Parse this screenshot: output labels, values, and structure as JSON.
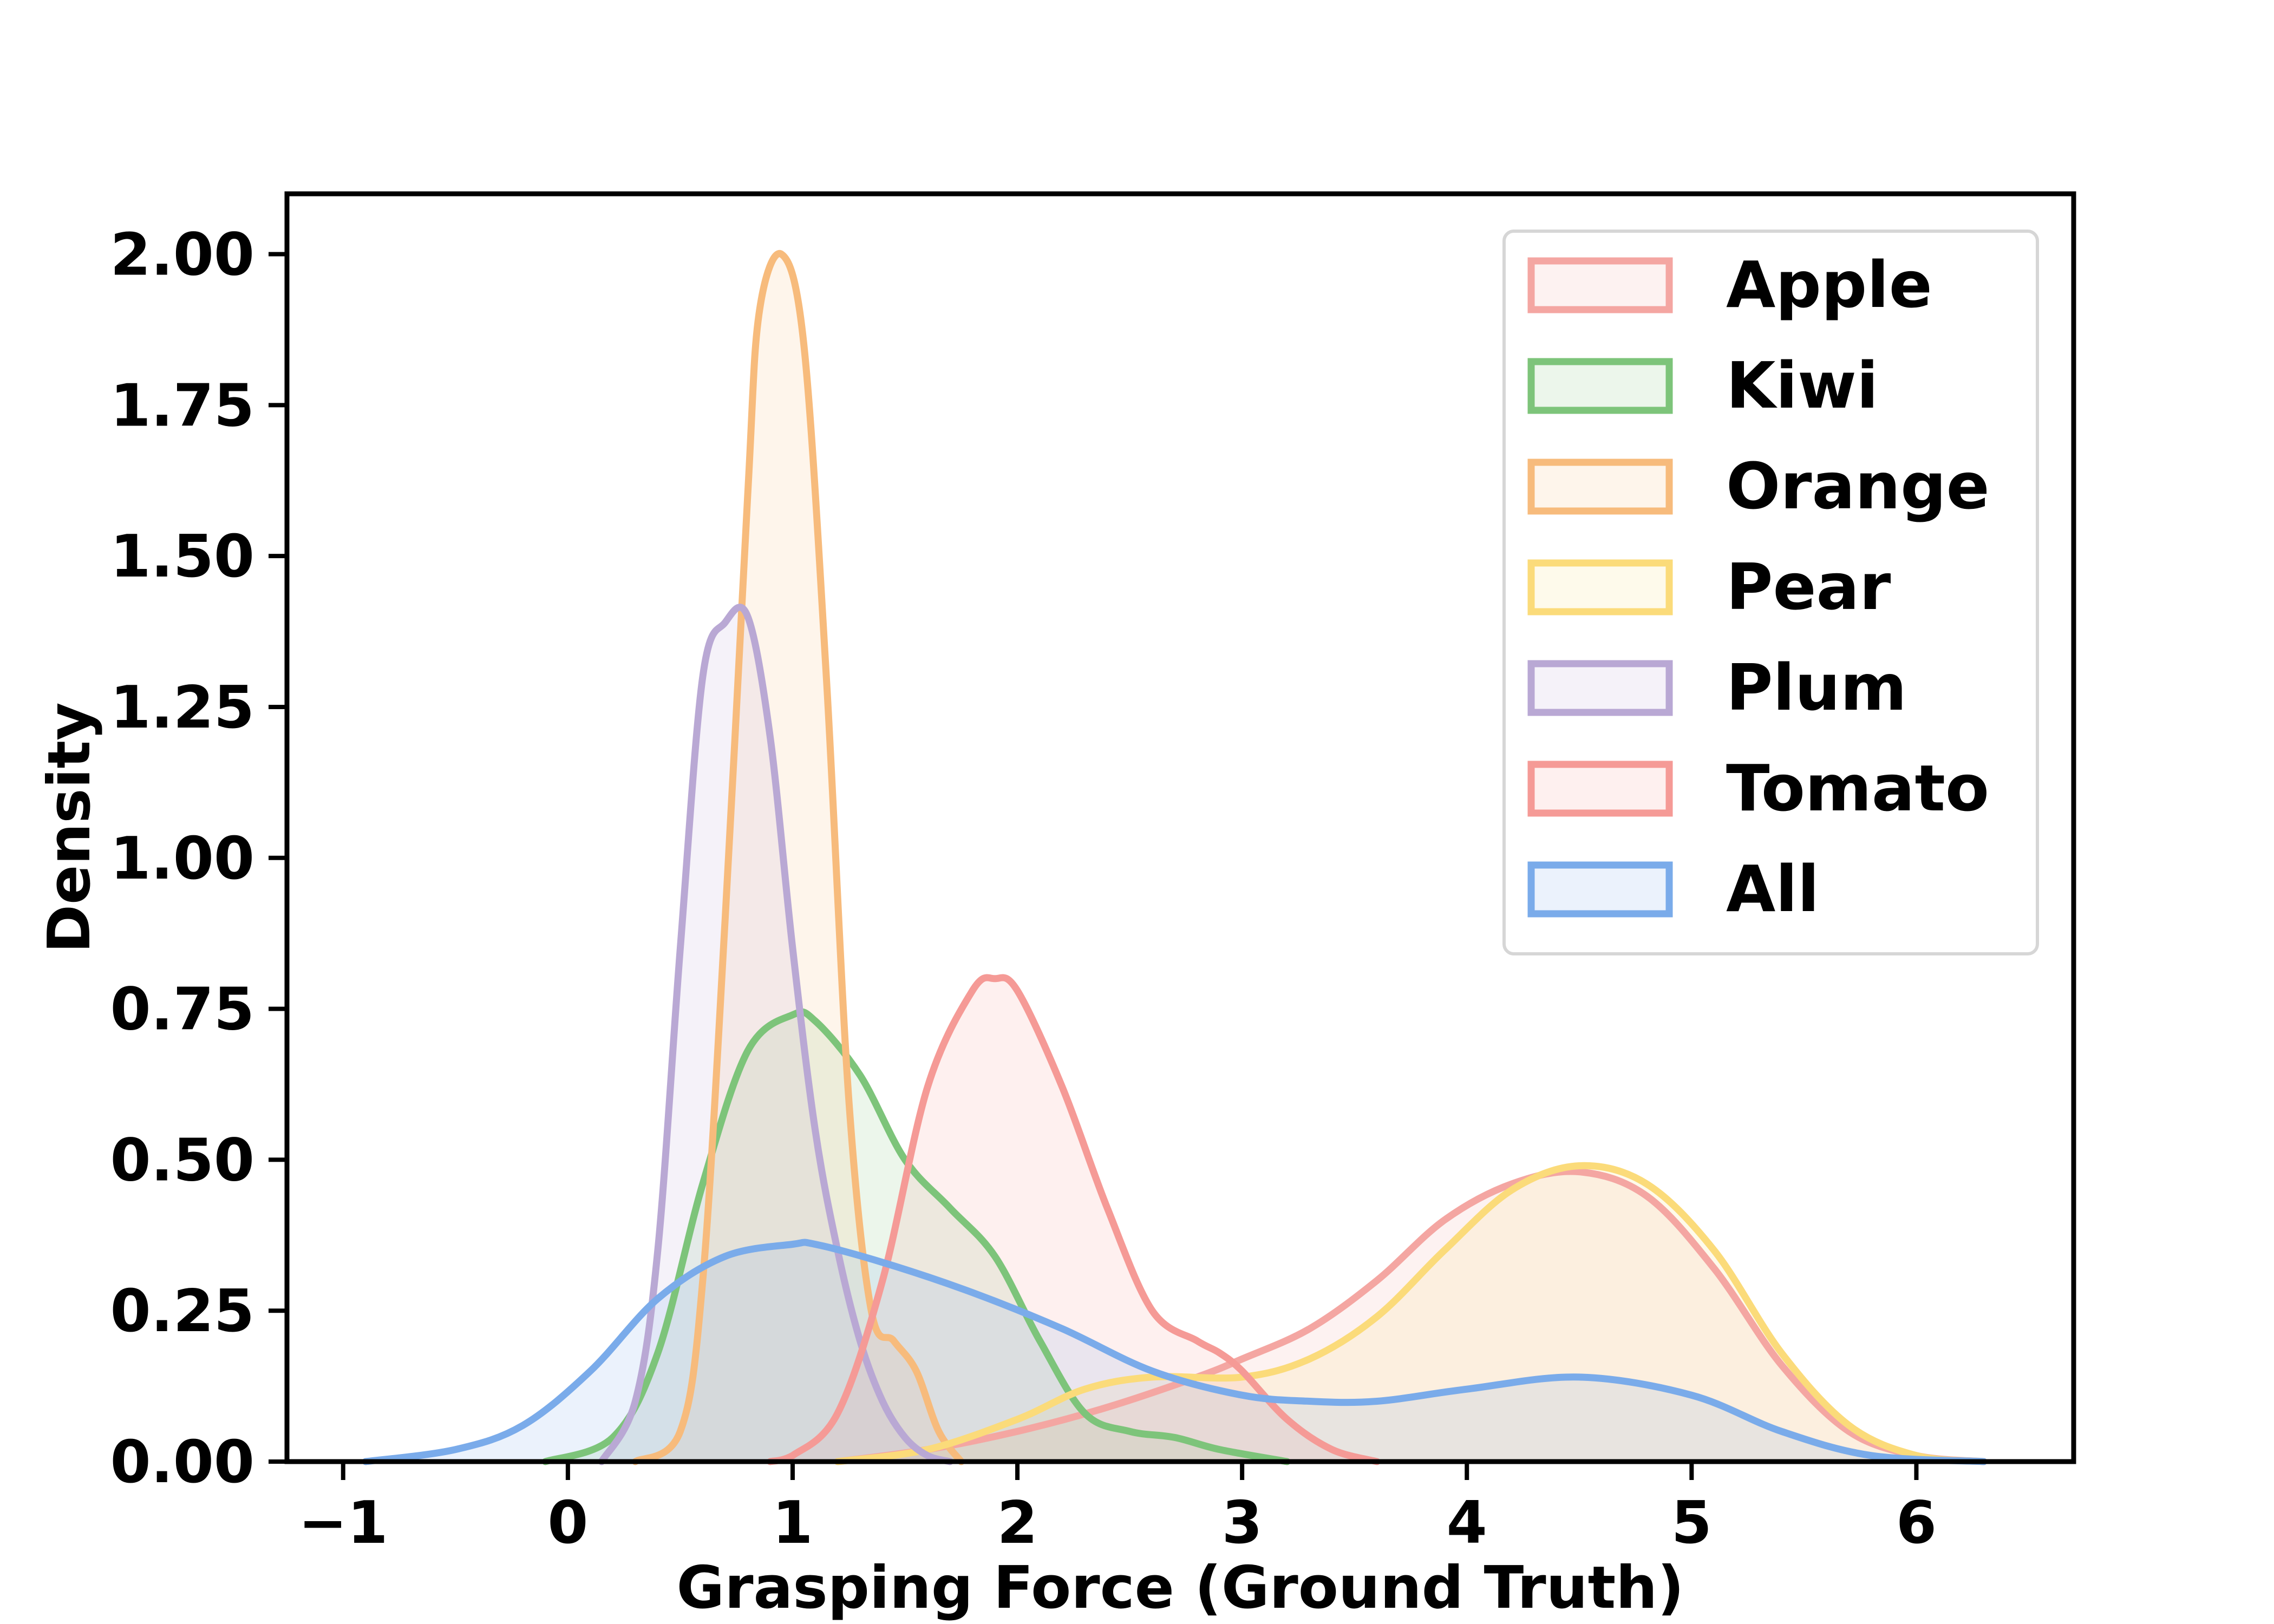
{
  "chart_data": {
    "type": "area",
    "title": "",
    "xlabel": "Grasping Force (Ground Truth)",
    "ylabel": "Density",
    "xlim": [
      -1.25,
      6.7
    ],
    "ylim": [
      0,
      2.1
    ],
    "xticks": [
      -1,
      0,
      1,
      2,
      3,
      4,
      5,
      6
    ],
    "xtick_labels": [
      "−1",
      "0",
      "1",
      "2",
      "3",
      "4",
      "5",
      "6"
    ],
    "yticks": [
      0,
      0.25,
      0.5,
      0.75,
      1.0,
      1.25,
      1.5,
      1.75,
      2.0
    ],
    "ytick_labels": [
      "0.00",
      "0.25",
      "0.50",
      "0.75",
      "1.00",
      "1.25",
      "1.50",
      "1.75",
      "2.00"
    ],
    "grid": false,
    "legend_position": "top-right",
    "series": [
      {
        "name": "Apple",
        "color": "#f4a6a2",
        "x": [
          1.2,
          1.6,
          2.0,
          2.4,
          2.8,
          3.0,
          3.3,
          3.6,
          3.9,
          4.2,
          4.5,
          4.8,
          5.1,
          5.4,
          5.7,
          6.0,
          6.3
        ],
        "y": [
          0.0,
          0.02,
          0.05,
          0.09,
          0.14,
          0.17,
          0.22,
          0.3,
          0.4,
          0.46,
          0.48,
          0.44,
          0.32,
          0.16,
          0.05,
          0.01,
          0.0
        ]
      },
      {
        "name": "Kiwi",
        "color": "#7dc47a",
        "x": [
          -0.1,
          0.2,
          0.4,
          0.6,
          0.8,
          1.0,
          1.1,
          1.3,
          1.5,
          1.7,
          1.9,
          2.1,
          2.3,
          2.5,
          2.7,
          2.9,
          3.2
        ],
        "y": [
          0.0,
          0.04,
          0.18,
          0.46,
          0.68,
          0.74,
          0.73,
          0.64,
          0.5,
          0.42,
          0.34,
          0.2,
          0.08,
          0.05,
          0.04,
          0.02,
          0.0
        ]
      },
      {
        "name": "Orange",
        "color": "#f7bb7c",
        "x": [
          0.3,
          0.5,
          0.6,
          0.7,
          0.8,
          0.85,
          0.95,
          1.05,
          1.15,
          1.25,
          1.35,
          1.45,
          1.55,
          1.65,
          1.75
        ],
        "y": [
          0.0,
          0.05,
          0.3,
          0.9,
          1.6,
          1.9,
          2.0,
          1.85,
          1.3,
          0.6,
          0.25,
          0.2,
          0.15,
          0.05,
          0.0
        ]
      },
      {
        "name": "Pear",
        "color": "#fbdb7a",
        "x": [
          1.2,
          1.6,
          2.0,
          2.3,
          2.6,
          3.0,
          3.3,
          3.6,
          3.9,
          4.2,
          4.5,
          4.8,
          5.1,
          5.4,
          5.7,
          6.0,
          6.3
        ],
        "y": [
          0.0,
          0.02,
          0.07,
          0.12,
          0.14,
          0.14,
          0.17,
          0.24,
          0.35,
          0.45,
          0.49,
          0.46,
          0.35,
          0.18,
          0.06,
          0.01,
          0.0
        ]
      },
      {
        "name": "Plum",
        "color": "#b9a8d4",
        "x": [
          0.15,
          0.3,
          0.4,
          0.5,
          0.6,
          0.7,
          0.8,
          0.9,
          1.0,
          1.1,
          1.2,
          1.3,
          1.4,
          1.5,
          1.6,
          1.7
        ],
        "y": [
          0.0,
          0.1,
          0.35,
          0.85,
          1.3,
          1.39,
          1.4,
          1.2,
          0.85,
          0.55,
          0.35,
          0.2,
          0.1,
          0.04,
          0.01,
          0.0
        ]
      },
      {
        "name": "Tomato",
        "color": "#f59a96",
        "x": [
          0.9,
          1.0,
          1.2,
          1.4,
          1.6,
          1.8,
          1.9,
          2.0,
          2.2,
          2.4,
          2.6,
          2.8,
          2.9,
          3.0,
          3.2,
          3.4,
          3.6
        ],
        "y": [
          0.0,
          0.01,
          0.08,
          0.3,
          0.62,
          0.78,
          0.8,
          0.78,
          0.62,
          0.42,
          0.25,
          0.2,
          0.18,
          0.15,
          0.07,
          0.02,
          0.0
        ]
      },
      {
        "name": "All",
        "color": "#7aabea",
        "x": [
          -0.9,
          -0.5,
          -0.2,
          0.1,
          0.4,
          0.7,
          1.0,
          1.1,
          1.4,
          1.8,
          2.2,
          2.6,
          3.0,
          3.3,
          3.6,
          4.0,
          4.5,
          5.0,
          5.4,
          5.8,
          6.3
        ],
        "y": [
          0.0,
          0.02,
          0.06,
          0.15,
          0.27,
          0.34,
          0.36,
          0.36,
          0.33,
          0.28,
          0.22,
          0.15,
          0.11,
          0.1,
          0.1,
          0.12,
          0.14,
          0.11,
          0.05,
          0.01,
          0.0
        ]
      }
    ]
  }
}
